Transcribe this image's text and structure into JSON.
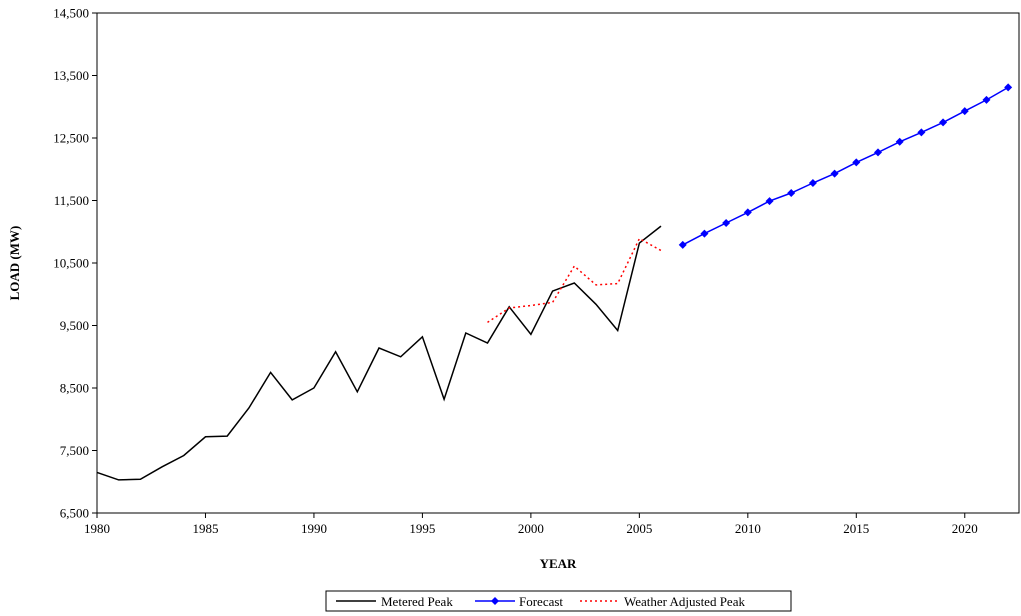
{
  "chart_data": {
    "type": "line",
    "title": "",
    "xlabel": "YEAR",
    "ylabel": "LOAD (MW)",
    "xlim": [
      1980,
      2022.5
    ],
    "ylim": [
      6500,
      14500
    ],
    "xticks": [
      1980,
      1985,
      1990,
      1995,
      2000,
      2005,
      2010,
      2015,
      2020
    ],
    "xtick_labels": [
      "1980",
      "1985",
      "1990",
      "1995",
      "2000",
      "2005",
      "2010",
      "2015",
      "2020"
    ],
    "yticks": [
      6500,
      7500,
      8500,
      9500,
      10500,
      11500,
      12500,
      13500,
      14500
    ],
    "ytick_labels": [
      "6,500",
      "7,500",
      "8,500",
      "9,500",
      "10,500",
      "11,500",
      "12,500",
      "13,500",
      "14,500"
    ],
    "grid": false,
    "legend_position": "bottom-center",
    "series": [
      {
        "name": "Metered Peak",
        "color": "#000000",
        "style": "solid",
        "marker": "none",
        "x": [
          1980,
          1981,
          1982,
          1983,
          1984,
          1985,
          1986,
          1987,
          1988,
          1989,
          1990,
          1991,
          1992,
          1993,
          1994,
          1995,
          1996,
          1997,
          1998,
          1999,
          2000,
          2001,
          2002,
          2003,
          2004,
          2005,
          2006
        ],
        "y": [
          7150,
          7030,
          7040,
          7240,
          7420,
          7720,
          7730,
          8180,
          8750,
          8310,
          8500,
          9080,
          8440,
          9140,
          9000,
          9320,
          8320,
          9380,
          9220,
          9800,
          9360,
          10050,
          10180,
          9840,
          9420,
          10820,
          11090
        ]
      },
      {
        "name": "Forecast",
        "color": "#0000ff",
        "style": "solid",
        "marker": "diamond",
        "x": [
          2007,
          2008,
          2009,
          2010,
          2011,
          2012,
          2013,
          2014,
          2015,
          2016,
          2017,
          2018,
          2019,
          2020,
          2021,
          2022
        ],
        "y": [
          10790,
          10970,
          11140,
          11310,
          11490,
          11620,
          11780,
          11930,
          12110,
          12270,
          12440,
          12590,
          12750,
          12930,
          13110,
          13310
        ]
      },
      {
        "name": "Weather Adjusted Peak",
        "color": "#ff0000",
        "style": "dotted",
        "marker": "none",
        "x": [
          1998,
          1999,
          2000,
          2001,
          2002,
          2003,
          2004,
          2005,
          2006
        ],
        "y": [
          9550,
          9780,
          9820,
          9870,
          10450,
          10150,
          10170,
          10890,
          10700
        ]
      }
    ]
  }
}
